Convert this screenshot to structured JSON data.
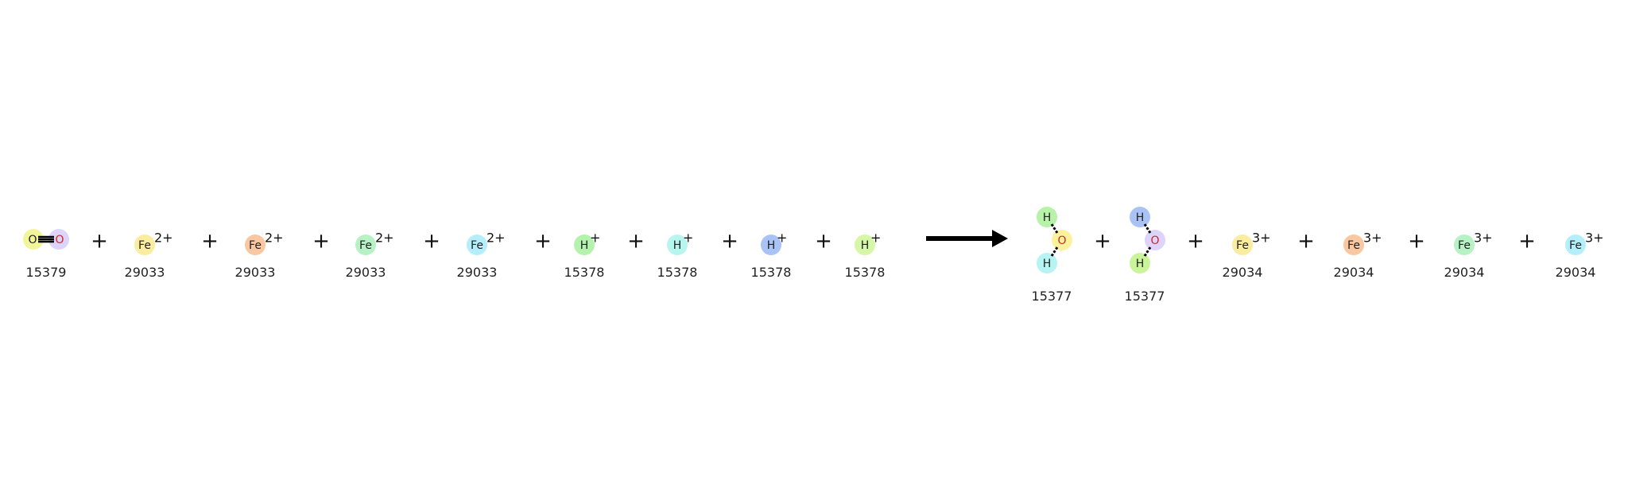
{
  "reaction": {
    "reactants": [
      {
        "kind": "CO",
        "atoms": [
          "O",
          "O"
        ],
        "id": "15379",
        "colors": [
          "#f3f59a",
          "#dcd4fb"
        ]
      },
      {
        "kind": "ion",
        "symbol": "Fe",
        "charge": "2+",
        "id": "29033",
        "color": "#fbeda0"
      },
      {
        "kind": "ion",
        "symbol": "Fe",
        "charge": "2+",
        "id": "29033",
        "color": "#f9c7a2"
      },
      {
        "kind": "ion",
        "symbol": "Fe",
        "charge": "2+",
        "id": "29033",
        "color": "#b6f2c4"
      },
      {
        "kind": "ion",
        "symbol": "Fe",
        "charge": "2+",
        "id": "29033",
        "color": "#b5eefb"
      },
      {
        "kind": "ion",
        "symbol": "H",
        "charge": "+",
        "id": "15378",
        "color": "#b4f3ad"
      },
      {
        "kind": "ion",
        "symbol": "H",
        "charge": "+",
        "id": "15378",
        "color": "#b7f6ee"
      },
      {
        "kind": "ion",
        "symbol": "H",
        "charge": "+",
        "id": "15378",
        "color": "#a9c3f7"
      },
      {
        "kind": "ion",
        "symbol": "H",
        "charge": "+",
        "id": "15378",
        "color": "#d6f7a8"
      }
    ],
    "products": [
      {
        "kind": "water",
        "atoms": [
          "H",
          "O",
          "H"
        ],
        "id": "15377",
        "colors": [
          "#b6f2a7",
          "#fbf29b",
          "#b5f4f3"
        ]
      },
      {
        "kind": "water",
        "atoms": [
          "H",
          "O",
          "H"
        ],
        "id": "15377",
        "colors": [
          "#a9c3f7",
          "#ddd3fb",
          "#caf49a"
        ]
      },
      {
        "kind": "ion",
        "symbol": "Fe",
        "charge": "3+",
        "id": "29034",
        "color": "#fbeda0"
      },
      {
        "kind": "ion",
        "symbol": "Fe",
        "charge": "3+",
        "id": "29034",
        "color": "#f9c7a2"
      },
      {
        "kind": "ion",
        "symbol": "Fe",
        "charge": "3+",
        "id": "29034",
        "color": "#b6f2c4"
      },
      {
        "kind": "ion",
        "symbol": "Fe",
        "charge": "3+",
        "id": "29034",
        "color": "#b5eefb"
      }
    ],
    "plus": "+",
    "colors": {
      "O_text": "#cc2a2a",
      "bond": "#000000",
      "text": "#222222"
    }
  }
}
